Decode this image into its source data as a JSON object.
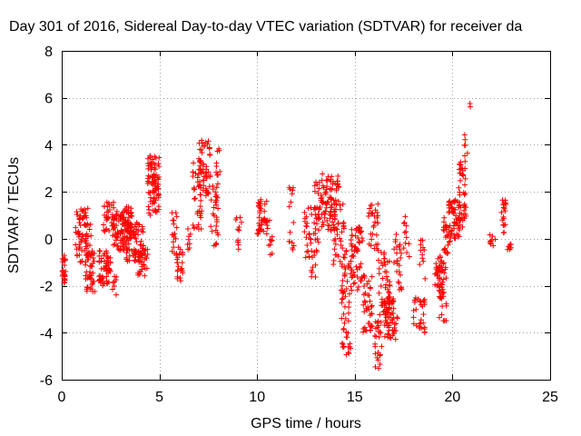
{
  "chart_data": {
    "type": "scatter",
    "title": "Day 301 of 2016, Sidereal Day-to-day VTEC variation (SDTVAR) for receiver da",
    "xlabel": "GPS time / hours",
    "ylabel": "SDTVAR / TECUs",
    "xlim": [
      0,
      25
    ],
    "ylim": [
      -6,
      8
    ],
    "xticks": [
      0,
      5,
      10,
      15,
      20,
      25
    ],
    "yticks": [
      -6,
      -4,
      -2,
      0,
      2,
      4,
      6,
      8
    ],
    "grid": true,
    "marker": "+",
    "color": "#ff0000",
    "clusters": [
      {
        "x": [
          0.0,
          0.2
        ],
        "y": [
          -2.0,
          -0.7
        ],
        "n": 25
      },
      {
        "x": [
          0.7,
          1.5
        ],
        "y": [
          -1.0,
          1.3
        ],
        "n": 70
      },
      {
        "x": [
          1.2,
          1.7
        ],
        "y": [
          -2.3,
          -0.5
        ],
        "n": 45
      },
      {
        "x": [
          1.9,
          2.5
        ],
        "y": [
          -2.0,
          -0.5
        ],
        "n": 55
      },
      {
        "x": [
          2.1,
          2.7
        ],
        "y": [
          0.3,
          1.6
        ],
        "n": 35
      },
      {
        "x": [
          2.6,
          3.3
        ],
        "y": [
          -0.5,
          1.2
        ],
        "n": 60
      },
      {
        "x": [
          2.6,
          2.8
        ],
        "y": [
          -2.4,
          -1.6
        ],
        "n": 8
      },
      {
        "x": [
          3.0,
          3.6
        ],
        "y": [
          0.2,
          1.4
        ],
        "n": 45
      },
      {
        "x": [
          3.3,
          4.2
        ],
        "y": [
          -1.0,
          0.8
        ],
        "n": 80
      },
      {
        "x": [
          3.9,
          4.4
        ],
        "y": [
          -1.6,
          -0.4
        ],
        "n": 30
      },
      {
        "x": [
          4.4,
          5.0
        ],
        "y": [
          1.0,
          3.6
        ],
        "n": 90
      },
      {
        "x": [
          5.6,
          5.9
        ],
        "y": [
          -0.8,
          1.4
        ],
        "n": 18
      },
      {
        "x": [
          5.9,
          6.2
        ],
        "y": [
          -1.8,
          -0.3
        ],
        "n": 22
      },
      {
        "x": [
          6.4,
          6.6
        ],
        "y": [
          -0.5,
          0.5
        ],
        "n": 8
      },
      {
        "x": [
          6.7,
          7.2
        ],
        "y": [
          0.4,
          3.5
        ],
        "n": 35
      },
      {
        "x": [
          7.0,
          7.6
        ],
        "y": [
          1.8,
          4.2
        ],
        "n": 55
      },
      {
        "x": [
          7.6,
          8.0
        ],
        "y": [
          -0.3,
          2.5
        ],
        "n": 30
      },
      {
        "x": [
          7.9,
          8.1
        ],
        "y": [
          2.2,
          4.2
        ],
        "n": 10
      },
      {
        "x": [
          8.8,
          9.2
        ],
        "y": [
          -1.0,
          1.1
        ],
        "n": 12
      },
      {
        "x": [
          10.0,
          10.5
        ],
        "y": [
          0.2,
          1.8
        ],
        "n": 40
      },
      {
        "x": [
          10.5,
          10.8
        ],
        "y": [
          -0.7,
          1.0
        ],
        "n": 12
      },
      {
        "x": [
          11.6,
          11.9
        ],
        "y": [
          -0.5,
          2.2
        ],
        "n": 15
      },
      {
        "x": [
          12.4,
          13.2
        ],
        "y": [
          -0.8,
          1.4
        ],
        "n": 45
      },
      {
        "x": [
          12.7,
          13.0
        ],
        "y": [
          -1.7,
          -1.0
        ],
        "n": 6
      },
      {
        "x": [
          12.9,
          13.3
        ],
        "y": [
          0.8,
          2.5
        ],
        "n": 18
      },
      {
        "x": [
          13.3,
          14.2
        ],
        "y": [
          0.3,
          2.8
        ],
        "n": 80
      },
      {
        "x": [
          13.9,
          14.5
        ],
        "y": [
          -1.5,
          1.6
        ],
        "n": 40
      },
      {
        "x": [
          14.3,
          14.8
        ],
        "y": [
          -5.0,
          -0.5
        ],
        "n": 55
      },
      {
        "x": [
          14.8,
          15.4
        ],
        "y": [
          -2.2,
          0.5
        ],
        "n": 60
      },
      {
        "x": [
          15.4,
          15.9
        ],
        "y": [
          -4.0,
          -1.5
        ],
        "n": 40
      },
      {
        "x": [
          15.7,
          16.2
        ],
        "y": [
          -0.5,
          1.5
        ],
        "n": 30
      },
      {
        "x": [
          16.0,
          16.4
        ],
        "y": [
          -5.7,
          -3.5
        ],
        "n": 25
      },
      {
        "x": [
          16.2,
          16.8
        ],
        "y": [
          -3.5,
          -0.5
        ],
        "n": 55
      },
      {
        "x": [
          16.5,
          17.0
        ],
        "y": [
          -4.4,
          -2.5
        ],
        "n": 45
      },
      {
        "x": [
          16.9,
          17.2
        ],
        "y": [
          -4.3,
          -3.3
        ],
        "n": 10
      },
      {
        "x": [
          17.0,
          17.4
        ],
        "y": [
          -2.3,
          0.3
        ],
        "n": 25
      },
      {
        "x": [
          17.5,
          17.8
        ],
        "y": [
          -1.0,
          1.2
        ],
        "n": 12
      },
      {
        "x": [
          18.0,
          18.6
        ],
        "y": [
          -4.0,
          -2.5
        ],
        "n": 30
      },
      {
        "x": [
          18.3,
          18.6
        ],
        "y": [
          -2.0,
          0.0
        ],
        "n": 12
      },
      {
        "x": [
          19.1,
          19.5
        ],
        "y": [
          -2.1,
          -0.7
        ],
        "n": 30
      },
      {
        "x": [
          19.3,
          19.7
        ],
        "y": [
          -3.5,
          -1.0
        ],
        "n": 35
      },
      {
        "x": [
          19.5,
          19.9
        ],
        "y": [
          -0.7,
          0.9
        ],
        "n": 25
      },
      {
        "x": [
          19.8,
          20.4
        ],
        "y": [
          0.0,
          1.7
        ],
        "n": 55
      },
      {
        "x": [
          20.3,
          20.7
        ],
        "y": [
          0.4,
          3.3
        ],
        "n": 45
      },
      {
        "x": [
          20.6,
          20.8
        ],
        "y": [
          3.2,
          4.5
        ],
        "n": 6
      },
      {
        "x": [
          20.8,
          21.0
        ],
        "y": [
          5.5,
          6.2
        ],
        "n": 2
      },
      {
        "x": [
          21.9,
          22.2
        ],
        "y": [
          -0.3,
          0.2
        ],
        "n": 10
      },
      {
        "x": [
          22.5,
          22.8
        ],
        "y": [
          0.2,
          1.7
        ],
        "n": 20
      },
      {
        "x": [
          22.8,
          23.0
        ],
        "y": [
          -0.5,
          -0.2
        ],
        "n": 8
      }
    ]
  }
}
